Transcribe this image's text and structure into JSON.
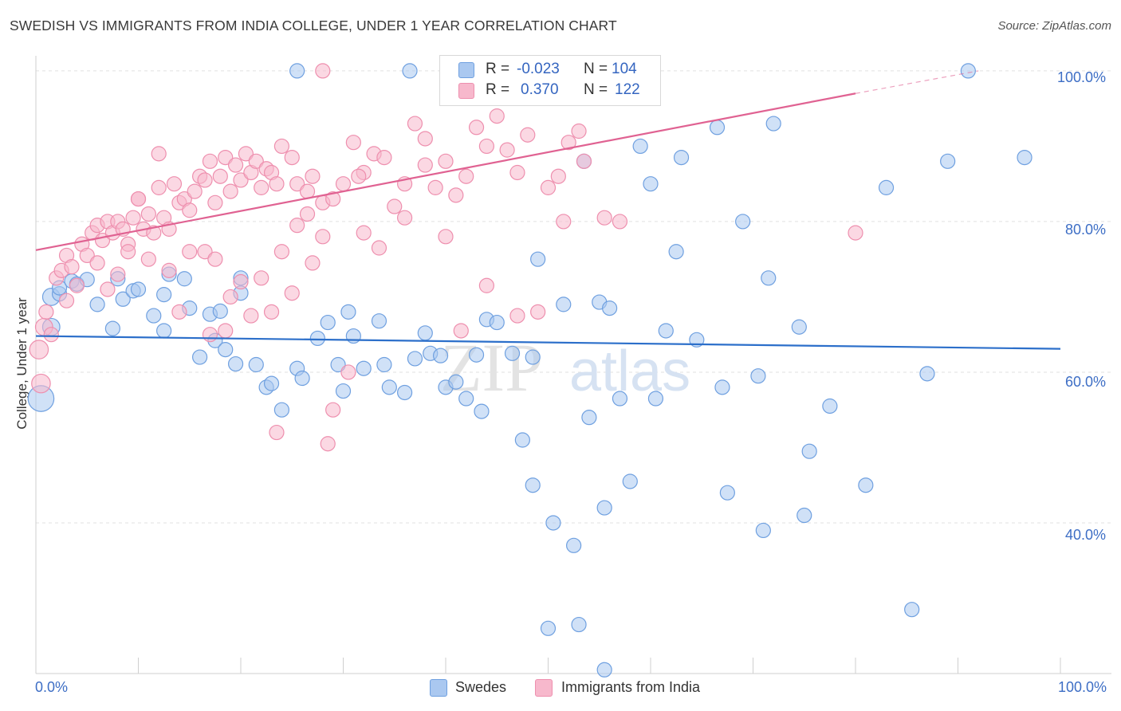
{
  "title": "SWEDISH VS IMMIGRANTS FROM INDIA COLLEGE, UNDER 1 YEAR CORRELATION CHART",
  "source": "Source: ZipAtlas.com",
  "watermark": {
    "zip": "ZIP",
    "atlas": "atlas"
  },
  "stats": [
    {
      "r_label": "R =",
      "r_value": "-0.023",
      "n_label": "N =",
      "n_value": "104",
      "color": "#aac8f0"
    },
    {
      "r_label": "R =",
      "r_value": "0.370",
      "n_label": "N =",
      "n_value": "122",
      "color": "#f7b8cc"
    }
  ],
  "legend": [
    {
      "label": "Swedes",
      "color": "#aac8f0"
    },
    {
      "label": "Immigrants from India",
      "color": "#f7b8cc"
    }
  ],
  "x_tick_labels": {
    "left": "0.0%",
    "right": "100.0%"
  },
  "y_tick_labels": [
    "100.0%",
    "80.0%",
    "60.0%",
    "40.0%"
  ],
  "chart_data": {
    "type": "scatter",
    "title": "SWEDISH VS IMMIGRANTS FROM INDIA COLLEGE, UNDER 1 YEAR CORRELATION CHART",
    "xlabel": "",
    "ylabel": "College, Under 1 year",
    "xlim": [
      0,
      100
    ],
    "ylim": [
      20,
      102
    ],
    "y_gridlines": [
      40,
      60,
      80,
      100
    ],
    "series": [
      {
        "name": "Swedes",
        "color": "#6fa0e0",
        "fill": "#aac8f0",
        "trend": {
          "x0": 0,
          "y0": 64.8,
          "x1": 100,
          "y1": 63.1,
          "color": "#2c6fca"
        },
        "points": [
          [
            0.5,
            56.5,
            1.8
          ],
          [
            1.5,
            66.0,
            1.2
          ],
          [
            1.5,
            70.0,
            1.2
          ],
          [
            2.3,
            70.4,
            1.0
          ],
          [
            2.3,
            71.2,
            1.0
          ],
          [
            3.5,
            72.1,
            1.0
          ],
          [
            4.0,
            71.7,
            1.0
          ],
          [
            5.0,
            72.3,
            1.0
          ],
          [
            6.0,
            69.0,
            1.0
          ],
          [
            7.5,
            65.8,
            1.0
          ],
          [
            8.0,
            72.4,
            1.0
          ],
          [
            8.5,
            69.7,
            1.0
          ],
          [
            9.5,
            70.8,
            1.0
          ],
          [
            10.0,
            71.0,
            1.0
          ],
          [
            11.5,
            67.5,
            1.0
          ],
          [
            12.5,
            70.3,
            1.0
          ],
          [
            13.0,
            73.0,
            1.0
          ],
          [
            14.5,
            72.4,
            1.0
          ],
          [
            15.0,
            68.5,
            1.0
          ],
          [
            16.0,
            62.0,
            1.0
          ],
          [
            17.0,
            67.7,
            1.0
          ],
          [
            17.5,
            64.2,
            1.0
          ],
          [
            18.0,
            68.1,
            1.0
          ],
          [
            18.5,
            63.0,
            1.0
          ],
          [
            19.5,
            61.1,
            1.0
          ],
          [
            20.0,
            70.5,
            1.0
          ],
          [
            21.5,
            61.0,
            1.0
          ],
          [
            22.5,
            58.0,
            1.0
          ],
          [
            23.0,
            58.5,
            1.0
          ],
          [
            24.0,
            55.0,
            1.0
          ],
          [
            25.5,
            60.5,
            1.0
          ],
          [
            26.0,
            59.2,
            1.0
          ],
          [
            27.5,
            64.5,
            1.0
          ],
          [
            28.5,
            66.6,
            1.0
          ],
          [
            29.5,
            61.0,
            1.0
          ],
          [
            30.5,
            68.0,
            1.0
          ],
          [
            31.0,
            64.8,
            1.0
          ],
          [
            32.0,
            60.5,
            1.0
          ],
          [
            33.5,
            66.8,
            1.0
          ],
          [
            34.0,
            61.0,
            1.0
          ],
          [
            34.5,
            58.0,
            1.0
          ],
          [
            36.0,
            57.3,
            1.0
          ],
          [
            37.0,
            61.8,
            1.0
          ],
          [
            38.0,
            65.2,
            1.0
          ],
          [
            38.5,
            62.5,
            1.0
          ],
          [
            39.5,
            62.2,
            1.0
          ],
          [
            40.0,
            58.0,
            1.0
          ],
          [
            41.0,
            58.7,
            1.0
          ],
          [
            42.0,
            56.5,
            1.0
          ],
          [
            43.0,
            62.3,
            1.0
          ],
          [
            43.5,
            54.8,
            1.0
          ],
          [
            44.0,
            67.0,
            1.0
          ],
          [
            45.0,
            66.6,
            1.0
          ],
          [
            46.5,
            62.5,
            1.0
          ],
          [
            47.5,
            51.0,
            1.0
          ],
          [
            48.5,
            62.0,
            1.0
          ],
          [
            49.0,
            75.0,
            1.0
          ],
          [
            50.5,
            40.0,
            1.0
          ],
          [
            51.5,
            69.0,
            1.0
          ],
          [
            52.5,
            37.0,
            1.0
          ],
          [
            53.5,
            88.0,
            1.0
          ],
          [
            54.0,
            54.0,
            1.0
          ],
          [
            55.0,
            69.3,
            1.0
          ],
          [
            55.5,
            42.0,
            1.0
          ],
          [
            56.0,
            68.5,
            1.0
          ],
          [
            57.0,
            56.5,
            1.0
          ],
          [
            58.0,
            45.5,
            1.0
          ],
          [
            59.0,
            90.0,
            1.0
          ],
          [
            60.0,
            85.0,
            1.0
          ],
          [
            61.5,
            65.5,
            1.0
          ],
          [
            62.5,
            76.0,
            1.0
          ],
          [
            63.0,
            88.5,
            1.0
          ],
          [
            64.5,
            64.3,
            1.0
          ],
          [
            66.5,
            92.5,
            1.0
          ],
          [
            67.0,
            58.0,
            1.0
          ],
          [
            67.5,
            44.0,
            1.0
          ],
          [
            69.0,
            80.0,
            1.0
          ],
          [
            70.5,
            59.5,
            1.0
          ],
          [
            71.0,
            39.0,
            1.0
          ],
          [
            71.5,
            72.5,
            1.0
          ],
          [
            72.0,
            93.0,
            1.0
          ],
          [
            74.5,
            66.0,
            1.0
          ],
          [
            75.0,
            41.0,
            1.0
          ],
          [
            75.5,
            49.5,
            1.0
          ],
          [
            77.5,
            55.5,
            1.0
          ],
          [
            81.0,
            45.0,
            1.0
          ],
          [
            83.0,
            84.5,
            1.0
          ],
          [
            85.5,
            28.5,
            1.0
          ],
          [
            87.0,
            59.8,
            1.0
          ],
          [
            89.0,
            88.0,
            1.0
          ],
          [
            91.0,
            100.0,
            1.0
          ],
          [
            96.5,
            88.5,
            1.0
          ],
          [
            25.5,
            100.0,
            1.0
          ],
          [
            36.5,
            100.0,
            1.0
          ],
          [
            50.0,
            26.0,
            1.0
          ],
          [
            53.0,
            26.5,
            1.0
          ],
          [
            55.5,
            20.5,
            1.0
          ],
          [
            48.5,
            45.0,
            1.0
          ],
          [
            20.0,
            72.5,
            1.0
          ],
          [
            12.5,
            65.5,
            1.0
          ],
          [
            30.0,
            57.5,
            1.0
          ],
          [
            60.5,
            56.5,
            1.0
          ]
        ]
      },
      {
        "name": "Immigrants from India",
        "color": "#ee8fae",
        "fill": "#f7b8cc",
        "trend": {
          "x0": 0,
          "y0": 76.2,
          "x1": 80,
          "y1": 97.0,
          "dash_x1": 92,
          "dash_y1": 100.0,
          "color": "#e06292"
        },
        "points": [
          [
            0.3,
            63.0,
            1.3
          ],
          [
            0.5,
            58.5,
            1.3
          ],
          [
            0.8,
            66.0,
            1.2
          ],
          [
            1.0,
            68.0,
            1.0
          ],
          [
            1.5,
            65.0,
            1.0
          ],
          [
            2.0,
            72.5,
            1.0
          ],
          [
            2.5,
            73.5,
            1.0
          ],
          [
            3.0,
            75.5,
            1.0
          ],
          [
            3.5,
            74.0,
            1.0
          ],
          [
            4.0,
            71.5,
            1.0
          ],
          [
            4.5,
            77.0,
            1.0
          ],
          [
            5.0,
            75.5,
            1.0
          ],
          [
            5.5,
            78.5,
            1.0
          ],
          [
            6.0,
            79.5,
            1.0
          ],
          [
            6.5,
            77.5,
            1.0
          ],
          [
            7.0,
            80.0,
            1.0
          ],
          [
            7.5,
            78.5,
            1.0
          ],
          [
            8.0,
            80.0,
            1.0
          ],
          [
            8.5,
            79.0,
            1.0
          ],
          [
            9.0,
            77.0,
            1.0
          ],
          [
            9.5,
            80.5,
            1.0
          ],
          [
            10.0,
            83.0,
            1.0
          ],
          [
            10.5,
            79.0,
            1.0
          ],
          [
            11.0,
            81.0,
            1.0
          ],
          [
            11.5,
            78.5,
            1.0
          ],
          [
            12.0,
            84.5,
            1.0
          ],
          [
            12.5,
            80.5,
            1.0
          ],
          [
            13.0,
            79.0,
            1.0
          ],
          [
            13.5,
            85.0,
            1.0
          ],
          [
            14.0,
            82.5,
            1.0
          ],
          [
            14.5,
            83.0,
            1.0
          ],
          [
            15.0,
            81.5,
            1.0
          ],
          [
            15.5,
            84.0,
            1.0
          ],
          [
            16.0,
            86.0,
            1.0
          ],
          [
            16.5,
            85.5,
            1.0
          ],
          [
            17.0,
            88.0,
            1.0
          ],
          [
            17.5,
            82.5,
            1.0
          ],
          [
            18.0,
            86.0,
            1.0
          ],
          [
            18.5,
            88.5,
            1.0
          ],
          [
            19.0,
            84.0,
            1.0
          ],
          [
            19.5,
            87.5,
            1.0
          ],
          [
            20.0,
            85.5,
            1.0
          ],
          [
            20.5,
            89.0,
            1.0
          ],
          [
            21.0,
            86.5,
            1.0
          ],
          [
            21.5,
            88.0,
            1.0
          ],
          [
            22.0,
            84.5,
            1.0
          ],
          [
            22.5,
            87.0,
            1.0
          ],
          [
            23.0,
            86.5,
            1.0
          ],
          [
            23.5,
            85.0,
            1.0
          ],
          [
            24.0,
            90.0,
            1.0
          ],
          [
            25.0,
            88.5,
            1.0
          ],
          [
            25.5,
            85.0,
            1.0
          ],
          [
            26.5,
            84.0,
            1.0
          ],
          [
            27.0,
            86.0,
            1.0
          ],
          [
            28.0,
            82.5,
            1.0
          ],
          [
            29.0,
            83.0,
            1.0
          ],
          [
            30.0,
            85.0,
            1.0
          ],
          [
            31.0,
            90.5,
            1.0
          ],
          [
            32.0,
            86.5,
            1.0
          ],
          [
            33.0,
            89.0,
            1.0
          ],
          [
            34.0,
            88.5,
            1.0
          ],
          [
            35.0,
            82.0,
            1.0
          ],
          [
            36.0,
            85.0,
            1.0
          ],
          [
            37.0,
            93.0,
            1.0
          ],
          [
            38.0,
            91.0,
            1.0
          ],
          [
            39.0,
            84.5,
            1.0
          ],
          [
            40.0,
            88.0,
            1.0
          ],
          [
            41.0,
            83.5,
            1.0
          ],
          [
            42.0,
            86.0,
            1.0
          ],
          [
            43.0,
            92.5,
            1.0
          ],
          [
            44.0,
            90.0,
            1.0
          ],
          [
            45.0,
            94.0,
            1.0
          ],
          [
            46.0,
            89.5,
            1.0
          ],
          [
            47.0,
            86.5,
            1.0
          ],
          [
            48.0,
            91.5,
            1.0
          ],
          [
            49.0,
            68.0,
            1.0
          ],
          [
            50.0,
            84.5,
            1.0
          ],
          [
            51.0,
            86.0,
            1.0
          ],
          [
            52.0,
            90.5,
            1.0
          ],
          [
            53.5,
            88.0,
            1.0
          ],
          [
            55.5,
            80.5,
            1.0
          ],
          [
            57.0,
            80.0,
            1.0
          ],
          [
            19.0,
            70.0,
            1.0
          ],
          [
            22.0,
            72.5,
            1.0
          ],
          [
            23.0,
            68.0,
            1.0
          ],
          [
            25.0,
            70.5,
            1.0
          ],
          [
            27.0,
            74.5,
            1.0
          ],
          [
            17.0,
            65.0,
            1.0
          ],
          [
            18.5,
            65.5,
            1.0
          ],
          [
            21.0,
            67.5,
            1.0
          ],
          [
            14.0,
            68.0,
            1.0
          ],
          [
            13.0,
            73.5,
            1.0
          ],
          [
            11.0,
            75.0,
            1.0
          ],
          [
            9.0,
            76.0,
            1.0
          ],
          [
            8.0,
            73.0,
            1.0
          ],
          [
            7.0,
            71.0,
            1.0
          ],
          [
            24.0,
            76.0,
            1.0
          ],
          [
            28.0,
            78.0,
            1.0
          ],
          [
            32.0,
            78.5,
            1.0
          ],
          [
            33.5,
            76.5,
            1.0
          ],
          [
            36.0,
            80.5,
            1.0
          ],
          [
            40.0,
            78.0,
            1.0
          ],
          [
            41.5,
            65.5,
            1.0
          ],
          [
            44.0,
            71.5,
            1.0
          ],
          [
            47.0,
            67.5,
            1.0
          ],
          [
            30.5,
            60.0,
            1.0
          ],
          [
            29.0,
            55.0,
            1.0
          ],
          [
            28.5,
            50.5,
            1.0
          ],
          [
            23.5,
            52.0,
            1.0
          ],
          [
            28.0,
            100.0,
            1.0
          ],
          [
            53.0,
            92.0,
            1.0
          ],
          [
            51.5,
            80.0,
            1.0
          ],
          [
            80.0,
            78.5,
            1.0
          ],
          [
            15.0,
            76.0,
            1.0
          ],
          [
            16.5,
            76.0,
            1.0
          ],
          [
            17.5,
            75.0,
            1.0
          ],
          [
            20.0,
            72.0,
            1.0
          ],
          [
            25.5,
            79.5,
            1.0
          ],
          [
            26.5,
            81.0,
            1.0
          ],
          [
            31.5,
            86.0,
            1.0
          ],
          [
            38.0,
            87.5,
            1.0
          ],
          [
            6.0,
            74.5,
            1.0
          ],
          [
            3.0,
            69.5,
            1.0
          ],
          [
            10.0,
            83.0,
            1.0
          ],
          [
            12.0,
            89.0,
            1.0
          ]
        ]
      }
    ]
  }
}
